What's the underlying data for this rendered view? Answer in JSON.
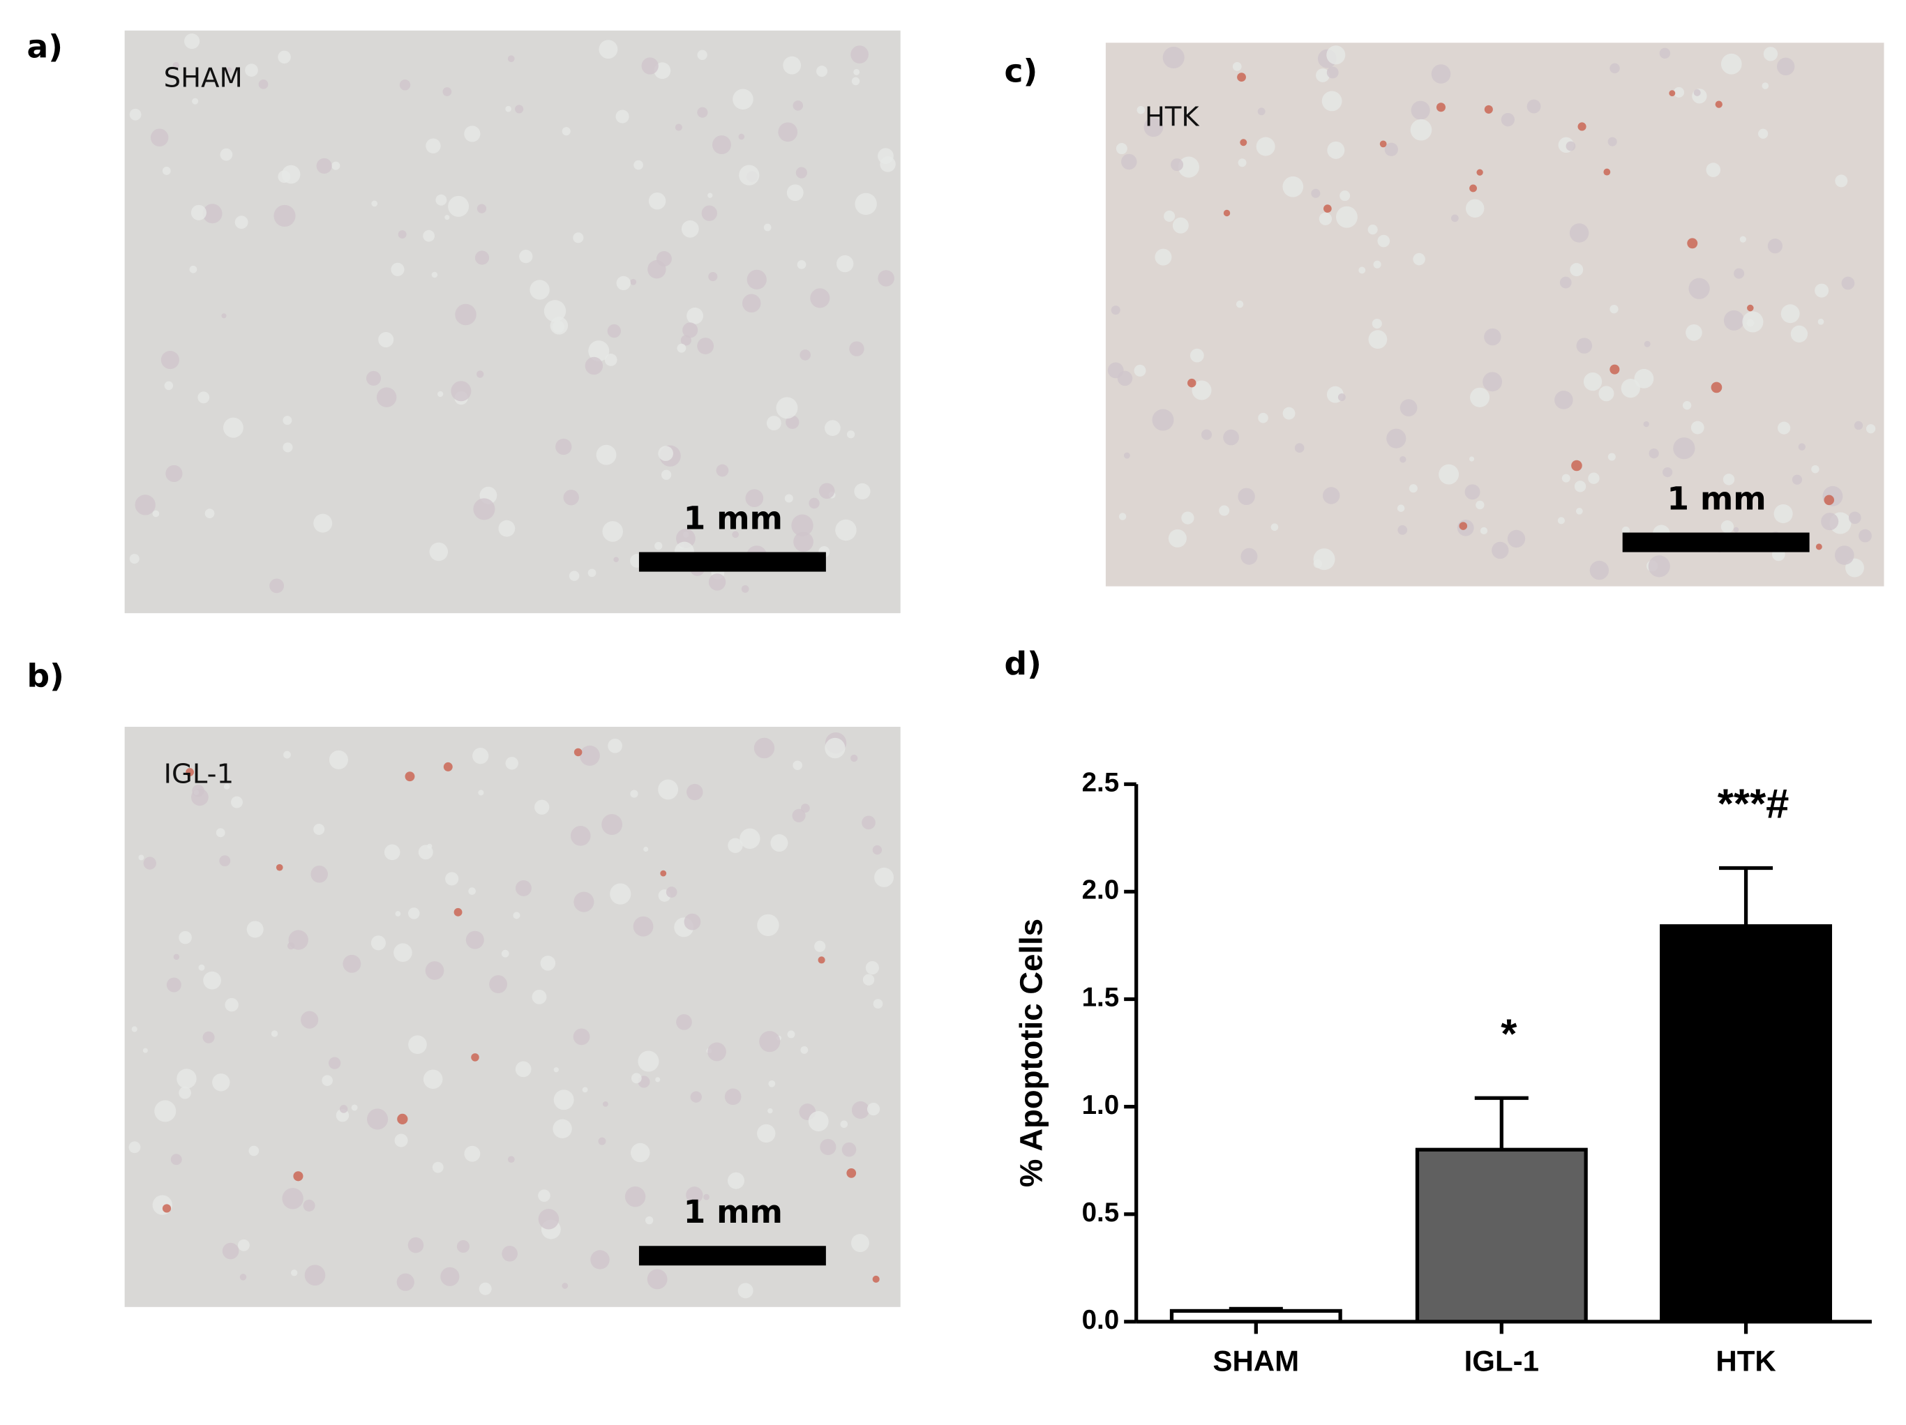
{
  "panels": [
    {
      "label": "a)",
      "name": "SHAM",
      "scale": "1 mm"
    },
    {
      "label": "b)",
      "name": "IGL-1",
      "scale": "1 mm"
    },
    {
      "label": "c)",
      "name": "HTK",
      "scale": "1 mm"
    }
  ],
  "chart_panel_label": "d)",
  "chart_data": {
    "type": "bar",
    "y_label": "% Apoptotic Cells",
    "categories": [
      "SHAM",
      "IGL-1",
      "HTK"
    ],
    "values": [
      0.05,
      0.8,
      1.84
    ],
    "errors": [
      0.01,
      0.24,
      0.27
    ],
    "colors": [
      "#ffffff",
      "#606060",
      "#000000"
    ],
    "annotations": [
      null,
      "*",
      "***#"
    ],
    "ylim": [
      0,
      2.5
    ],
    "yticks": [
      {
        "value": 0,
        "label": "0.0"
      },
      0.5,
      {
        "value": 1,
        "label": "1.0"
      },
      1.5,
      {
        "value": 2,
        "label": "2.0"
      },
      2.5
    ]
  }
}
